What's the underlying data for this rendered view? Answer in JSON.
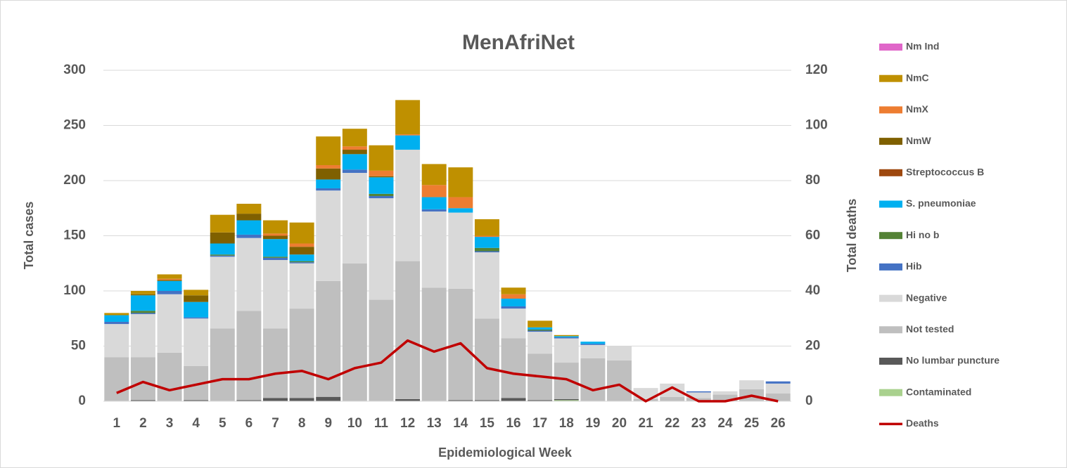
{
  "chart_data": {
    "type": "bar",
    "stacked": true,
    "title": "MenAfriNet",
    "x_label": "Epidemiological Week",
    "y_label": "Total cases",
    "y2_label": "Total deaths",
    "categories": [
      "1",
      "2",
      "3",
      "4",
      "5",
      "6",
      "7",
      "8",
      "9",
      "10",
      "11",
      "12",
      "13",
      "14",
      "15",
      "16",
      "17",
      "18",
      "19",
      "20",
      "21",
      "22",
      "23",
      "24",
      "25",
      "26"
    ],
    "ylim": [
      0,
      300
    ],
    "yticks": [
      0,
      50,
      100,
      150,
      200,
      250,
      300
    ],
    "y2lim": [
      0,
      120
    ],
    "y2ticks": [
      0,
      20,
      40,
      60,
      80,
      100,
      120
    ],
    "grid": true,
    "legend": "right",
    "series": [
      {
        "name": "Nm Ind",
        "color": "#e066c9",
        "values": [
          0,
          0,
          0,
          0,
          0,
          0,
          0,
          0,
          0,
          0,
          0,
          0,
          0,
          0,
          0,
          0,
          0,
          0,
          0,
          0,
          0,
          0,
          0,
          0,
          0,
          0
        ]
      },
      {
        "name": "NmC",
        "color": "#bf9000",
        "values": [
          2,
          3,
          4,
          5,
          16,
          9,
          12,
          19,
          26,
          16,
          23,
          31,
          19,
          27,
          15,
          6,
          6,
          1,
          0,
          0,
          0,
          0,
          0,
          0,
          0,
          0
        ]
      },
      {
        "name": "NmX",
        "color": "#ed7d31",
        "values": [
          0,
          0,
          1,
          0,
          0,
          0,
          2,
          3,
          3,
          3,
          5,
          1,
          11,
          10,
          1,
          4,
          0,
          0,
          0,
          0,
          0,
          0,
          0,
          0,
          0,
          0
        ]
      },
      {
        "name": "NmW",
        "color": "#7f6000",
        "values": [
          0,
          1,
          1,
          6,
          10,
          6,
          3,
          7,
          10,
          4,
          1,
          0,
          0,
          0,
          0,
          0,
          0,
          0,
          0,
          0,
          0,
          0,
          0,
          0,
          0,
          0
        ]
      },
      {
        "name": "Streptococcus B",
        "color": "#9e480e",
        "values": [
          0,
          0,
          0,
          0,
          0,
          0,
          0,
          0,
          0,
          0,
          0,
          0,
          0,
          0,
          0,
          0,
          0,
          0,
          0,
          0,
          0,
          0,
          0,
          0,
          0,
          0
        ]
      },
      {
        "name": "S. pneumoniae",
        "color": "#00b0f0",
        "values": [
          6,
          14,
          9,
          14,
          10,
          13,
          16,
          6,
          8,
          14,
          15,
          13,
          11,
          4,
          10,
          7,
          2,
          1,
          2,
          0,
          0,
          0,
          0,
          0,
          0,
          0
        ]
      },
      {
        "name": "Hi no b",
        "color": "#548235",
        "values": [
          0,
          2,
          0,
          0,
          1,
          0,
          1,
          1,
          0,
          0,
          2,
          0,
          0,
          0,
          3,
          0,
          1,
          0,
          0,
          0,
          0,
          0,
          0,
          0,
          0,
          0
        ]
      },
      {
        "name": "Hib",
        "color": "#4472c4",
        "values": [
          2,
          1,
          3,
          1,
          1,
          3,
          2,
          1,
          2,
          3,
          2,
          0,
          2,
          0,
          1,
          2,
          1,
          1,
          1,
          0,
          0,
          0,
          1,
          0,
          0,
          2
        ]
      },
      {
        "name": "Negative",
        "color": "#d9d9d9",
        "values": [
          30,
          39,
          53,
          43,
          65,
          66,
          62,
          41,
          82,
          82,
          92,
          101,
          69,
          69,
          60,
          27,
          20,
          22,
          12,
          13,
          10,
          12,
          5,
          3,
          8,
          9
        ]
      },
      {
        "name": "Not tested",
        "color": "#bfbfbf",
        "values": [
          40,
          39,
          44,
          31,
          66,
          81,
          63,
          81,
          105,
          125,
          92,
          125,
          103,
          101,
          74,
          54,
          42,
          33,
          39,
          37,
          2,
          4,
          3,
          6,
          11,
          7
        ]
      },
      {
        "name": "No lumbar puncture",
        "color": "#595959",
        "values": [
          0,
          1,
          0,
          1,
          0,
          1,
          3,
          3,
          4,
          0,
          0,
          2,
          0,
          1,
          1,
          3,
          1,
          1,
          0,
          0,
          0,
          0,
          0,
          0,
          0,
          0
        ]
      },
      {
        "name": "Contaminated",
        "color": "#a9d18e",
        "values": [
          0,
          0,
          0,
          0,
          0,
          0,
          0,
          0,
          0,
          0,
          0,
          0,
          0,
          0,
          0,
          0,
          0,
          1,
          0,
          0,
          0,
          0,
          0,
          0,
          0,
          0
        ]
      },
      {
        "name": "Deaths",
        "color": "#c00000",
        "type": "line",
        "axis": "y2",
        "values": [
          3,
          7,
          4,
          6,
          8,
          8,
          10,
          11,
          8,
          12,
          14,
          22,
          18,
          21,
          12,
          10,
          9,
          8,
          4,
          6,
          0,
          5,
          0,
          0,
          2,
          0
        ]
      }
    ]
  }
}
